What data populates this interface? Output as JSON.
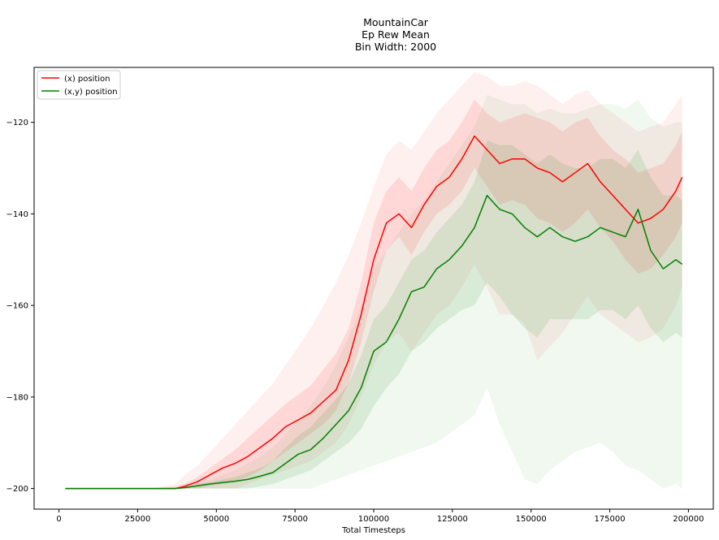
{
  "chart_data": {
    "type": "line",
    "title_lines": [
      "MountainCar",
      "Ep Rew Mean",
      "Bin Width: 2000"
    ],
    "xlabel": "Total Timesteps",
    "ylabel": "",
    "xlim": [
      -7900,
      207900
    ],
    "ylim": [
      -204.5,
      -108
    ],
    "xticks": [
      0,
      25000,
      50000,
      75000,
      100000,
      125000,
      150000,
      175000,
      200000
    ],
    "xtick_labels": [
      "0",
      "25000",
      "50000",
      "75000",
      "100000",
      "125000",
      "150000",
      "175000",
      "200000"
    ],
    "yticks": [
      -200,
      -180,
      -160,
      -140,
      -120
    ],
    "ytick_labels": [
      "−200",
      "−180",
      "−160",
      "−140",
      "−120"
    ],
    "grid": false,
    "legend_position": "upper left",
    "x": [
      2000,
      10000,
      20000,
      30000,
      37000,
      40000,
      44000,
      48000,
      52000,
      56000,
      60000,
      64000,
      68000,
      72000,
      76000,
      80000,
      84000,
      88000,
      92000,
      96000,
      100000,
      104000,
      108000,
      112000,
      116000,
      120000,
      124000,
      128000,
      132000,
      136000,
      140000,
      144000,
      148000,
      152000,
      156000,
      160000,
      164000,
      168000,
      172000,
      176000,
      180000,
      184000,
      188000,
      192000,
      196000,
      198000
    ],
    "series": [
      {
        "name": "(x) position",
        "color": "#ff0000",
        "values": [
          -200,
          -200,
          -200,
          -200,
          -200,
          -199.5,
          -198.5,
          -197,
          -195.5,
          -194.5,
          -193,
          -191,
          -189,
          -186.5,
          -185,
          -183.5,
          -181,
          -178.5,
          -172,
          -162,
          -150,
          -142,
          -140,
          -143,
          -138,
          -134,
          -132,
          -128,
          -123,
          -126,
          -129,
          -128,
          -128,
          -130,
          -131,
          -133,
          -131,
          -129,
          -133,
          -136,
          -139,
          -142,
          -141,
          -139,
          -135,
          -132
        ],
        "band_inner": [
          [
            -200,
            -200
          ],
          [
            -200,
            -200
          ],
          [
            -200,
            -200
          ],
          [
            -200,
            -200
          ],
          [
            -200,
            -199.5
          ],
          [
            -200,
            -199
          ],
          [
            -200,
            -197.5
          ],
          [
            -199.5,
            -195.5
          ],
          [
            -199,
            -193.5
          ],
          [
            -198.5,
            -191.5
          ],
          [
            -197.5,
            -189
          ],
          [
            -196,
            -186.5
          ],
          [
            -194,
            -184
          ],
          [
            -192,
            -181.5
          ],
          [
            -190,
            -179.5
          ],
          [
            -188,
            -177.5
          ],
          [
            -186,
            -174
          ],
          [
            -183,
            -170.5
          ],
          [
            -177,
            -165
          ],
          [
            -168,
            -155
          ],
          [
            -157,
            -142
          ],
          [
            -148,
            -135
          ],
          [
            -145,
            -132
          ],
          [
            -149,
            -135
          ],
          [
            -144,
            -130
          ],
          [
            -140,
            -126
          ],
          [
            -138,
            -124
          ],
          [
            -135,
            -120
          ],
          [
            -130,
            -115
          ],
          [
            -134,
            -118
          ],
          [
            -138,
            -120
          ],
          [
            -137,
            -119
          ],
          [
            -138,
            -118
          ],
          [
            -141,
            -119
          ],
          [
            -142,
            -120
          ],
          [
            -144,
            -122
          ],
          [
            -142,
            -120
          ],
          [
            -139,
            -119
          ],
          [
            -143,
            -123
          ],
          [
            -146,
            -126
          ],
          [
            -150,
            -128
          ],
          [
            -153,
            -131
          ],
          [
            -152,
            -130
          ],
          [
            -149,
            -129
          ],
          [
            -145,
            -125
          ],
          [
            -142,
            -122
          ]
        ],
        "band_outer": [
          [
            -200,
            -200
          ],
          [
            -200,
            -200
          ],
          [
            -200,
            -200
          ],
          [
            -200,
            -200
          ],
          [
            -200,
            -199
          ],
          [
            -200,
            -197
          ],
          [
            -200,
            -195
          ],
          [
            -200,
            -192
          ],
          [
            -200,
            -189
          ],
          [
            -200,
            -186
          ],
          [
            -199,
            -183
          ],
          [
            -198,
            -180
          ],
          [
            -197,
            -177
          ],
          [
            -196,
            -173
          ],
          [
            -195,
            -169
          ],
          [
            -194,
            -165
          ],
          [
            -192,
            -160
          ],
          [
            -190,
            -155
          ],
          [
            -186,
            -149
          ],
          [
            -180,
            -142
          ],
          [
            -173,
            -134
          ],
          [
            -168,
            -127
          ],
          [
            -166,
            -124
          ],
          [
            -170,
            -126
          ],
          [
            -166,
            -122
          ],
          [
            -162,
            -118
          ],
          [
            -160,
            -115
          ],
          [
            -156,
            -112
          ],
          [
            -151,
            -109
          ],
          [
            -156,
            -110
          ],
          [
            -162,
            -112
          ],
          [
            -162,
            -112
          ],
          [
            -164,
            -111
          ],
          [
            -172,
            -112
          ],
          [
            -169,
            -114
          ],
          [
            -166,
            -116
          ],
          [
            -162,
            -114
          ],
          [
            -158,
            -113
          ],
          [
            -162,
            -116
          ],
          [
            -164,
            -118
          ],
          [
            -166,
            -120
          ],
          [
            -168,
            -122
          ],
          [
            -167,
            -121
          ],
          [
            -165,
            -120
          ],
          [
            -160,
            -116
          ],
          [
            -156,
            -114
          ]
        ]
      },
      {
        "name": "(x,y) position",
        "color": "#008000",
        "values": [
          -200,
          -200,
          -200,
          -200,
          -200,
          -199.8,
          -199.4,
          -199,
          -198.7,
          -198.4,
          -198,
          -197.3,
          -196.5,
          -194.5,
          -192.5,
          -191.5,
          -189,
          -186,
          -183,
          -178,
          -170,
          -168,
          -163,
          -157,
          -156,
          -152,
          -150,
          -147,
          -143,
          -136,
          -139,
          -140,
          -143,
          -145,
          -143,
          -145,
          -146,
          -145,
          -143,
          -144,
          -145,
          -139,
          -148,
          -152,
          -150,
          -151
        ],
        "band_inner": [
          [
            -200,
            -200
          ],
          [
            -200,
            -200
          ],
          [
            -200,
            -200
          ],
          [
            -200,
            -200
          ],
          [
            -200,
            -200
          ],
          [
            -200,
            -199.5
          ],
          [
            -200,
            -199
          ],
          [
            -200,
            -198.5
          ],
          [
            -200,
            -198
          ],
          [
            -200,
            -197.5
          ],
          [
            -200,
            -196.5
          ],
          [
            -199.5,
            -195.5
          ],
          [
            -199,
            -194
          ],
          [
            -198,
            -191
          ],
          [
            -197,
            -188.5
          ],
          [
            -196,
            -186.5
          ],
          [
            -194,
            -183.5
          ],
          [
            -192,
            -180.5
          ],
          [
            -190,
            -177
          ],
          [
            -187,
            -171
          ],
          [
            -182,
            -163
          ],
          [
            -178,
            -160
          ],
          [
            -175,
            -155
          ],
          [
            -170,
            -150
          ],
          [
            -168,
            -148
          ],
          [
            -165,
            -144
          ],
          [
            -163,
            -141
          ],
          [
            -161,
            -138
          ],
          [
            -160,
            -133
          ],
          [
            -155,
            -124
          ],
          [
            -158,
            -125
          ],
          [
            -162,
            -125
          ],
          [
            -165,
            -127
          ],
          [
            -167,
            -129
          ],
          [
            -163,
            -127
          ],
          [
            -163,
            -129
          ],
          [
            -163,
            -130
          ],
          [
            -163,
            -130
          ],
          [
            -161,
            -128
          ],
          [
            -161,
            -128
          ],
          [
            -163,
            -130
          ],
          [
            -160,
            -126
          ],
          [
            -165,
            -132
          ],
          [
            -168,
            -136
          ],
          [
            -166,
            -136
          ],
          [
            -167,
            -137
          ]
        ],
        "band_outer": [
          [
            -200,
            -200
          ],
          [
            -200,
            -200
          ],
          [
            -200,
            -200
          ],
          [
            -200,
            -200
          ],
          [
            -200,
            -200
          ],
          [
            -200,
            -199
          ],
          [
            -200,
            -198.5
          ],
          [
            -200,
            -198
          ],
          [
            -200,
            -197
          ],
          [
            -200,
            -196
          ],
          [
            -200,
            -194.5
          ],
          [
            -200,
            -193
          ],
          [
            -200,
            -191
          ],
          [
            -200,
            -188
          ],
          [
            -200,
            -185
          ],
          [
            -200,
            -182
          ],
          [
            -199,
            -178
          ],
          [
            -198,
            -173
          ],
          [
            -197,
            -167
          ],
          [
            -196,
            -160
          ],
          [
            -195,
            -152
          ],
          [
            -194,
            -148
          ],
          [
            -193,
            -144
          ],
          [
            -192,
            -140
          ],
          [
            -191,
            -137
          ],
          [
            -190,
            -133
          ],
          [
            -188,
            -129
          ],
          [
            -186,
            -125
          ],
          [
            -184,
            -121
          ],
          [
            -178,
            -114
          ],
          [
            -186,
            -115
          ],
          [
            -192,
            -116
          ],
          [
            -198,
            -116
          ],
          [
            -199,
            -118
          ],
          [
            -196,
            -117
          ],
          [
            -194,
            -118
          ],
          [
            -192,
            -118
          ],
          [
            -191,
            -117
          ],
          [
            -190,
            -116
          ],
          [
            -192,
            -116
          ],
          [
            -195,
            -117
          ],
          [
            -196,
            -115
          ],
          [
            -198,
            -119
          ],
          [
            -200,
            -121
          ],
          [
            -199,
            -120
          ],
          [
            -200,
            -120
          ]
        ]
      }
    ]
  }
}
